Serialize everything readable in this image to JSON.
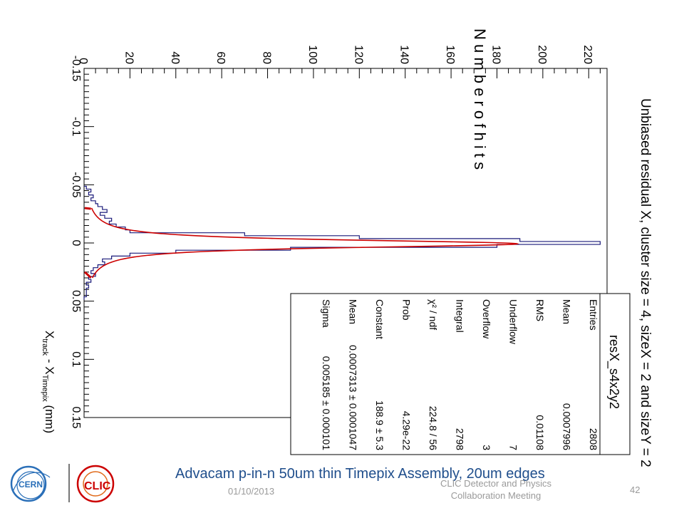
{
  "chart_data": {
    "type": "histogram",
    "orientation": "rotated-90",
    "title": "Unbiased residual X, cluster size = 4, sizeX = 2 and sizeY = 2",
    "xlabel": "X_track - X_Timepix (mm)",
    "xlabel_main": "X",
    "xlabel_sub1": "track",
    "xlabel_mid": " - X",
    "xlabel_sub2": "Timepix",
    "xlabel_unit": " (mm)",
    "ylabel": "N u m b e r  o f  h i t s",
    "xlim": [
      -0.15,
      0.15
    ],
    "ylim": [
      0,
      228
    ],
    "x_ticks": [
      "-0.15",
      "-0.1",
      "-0.05",
      "0",
      "0.05",
      "0.1",
      "0.15"
    ],
    "x_tick_values": [
      -0.15,
      -0.1,
      -0.05,
      0,
      0.05,
      0.1,
      0.15
    ],
    "y_ticks": [
      "0",
      "20",
      "40",
      "60",
      "80",
      "100",
      "120",
      "140",
      "160",
      "180",
      "200",
      "220"
    ],
    "y_tick_values": [
      0,
      20,
      40,
      60,
      80,
      100,
      120,
      140,
      160,
      180,
      200,
      220
    ],
    "histogram": {
      "name": "resX_s4x2y2",
      "bin_width": 0.0025,
      "x": [
        -0.0475,
        -0.045,
        -0.0425,
        -0.04,
        -0.0375,
        -0.035,
        -0.0325,
        -0.03,
        -0.0275,
        -0.025,
        -0.0225,
        -0.02,
        -0.0175,
        -0.015,
        -0.0125,
        -0.01,
        -0.0075,
        -0.005,
        -0.0025,
        0,
        0.0025,
        0.005,
        0.0075,
        0.01,
        0.0125,
        0.015,
        0.0175,
        0.02,
        0.0225,
        0.025,
        0.0275,
        0.03,
        0.0325,
        0.035,
        0.0375,
        0.04,
        0.0425,
        0.045,
        0.0475
      ],
      "values": [
        1,
        3,
        2,
        4,
        3,
        5,
        6,
        8,
        10,
        7,
        9,
        12,
        11,
        14,
        18,
        20,
        70,
        120,
        190,
        225,
        180,
        90,
        40,
        20,
        12,
        8,
        9,
        6,
        4,
        3,
        5,
        2,
        3,
        1,
        2,
        1,
        1,
        1,
        0
      ],
      "color": "#1a1a7a"
    },
    "fit": {
      "type": "gaussian-like",
      "peak": 188.9,
      "mean": 0.0007313,
      "sigma": 0.005185,
      "color": "#cc0000"
    },
    "stats_box": {
      "title": "resX_s4x2y2",
      "rows": [
        {
          "label": "Entries",
          "value": "2808"
        },
        {
          "label": "Mean",
          "value": "0.0007996"
        },
        {
          "label": "RMS",
          "value": "0.01108"
        },
        {
          "label": "Underflow",
          "value": "7"
        },
        {
          "label": "Overflow",
          "value": "3"
        },
        {
          "label": "Integral",
          "value": "2798"
        },
        {
          "label": "χ² / ndf",
          "value": "224.8 / 56"
        },
        {
          "label": "Prob",
          "value": "4.29e-22"
        },
        {
          "label": "Constant",
          "value": "188.9 ± 5.3"
        },
        {
          "label": "Mean",
          "value": "0.0007313 ± 0.0001047"
        },
        {
          "label": "Sigma",
          "value": "0.005185 ± 0.000101"
        }
      ]
    }
  },
  "subtitle": "Advacam  p-in-n 50um thin Timepix Assembly, 20um edges",
  "footer": {
    "date": "01/10/2013",
    "conference_line1": "CLIC Detector and Physics",
    "conference_line2": "Collaboration Meeting",
    "page": "42"
  },
  "logos": {
    "cern": "CERN",
    "clic": "CLIC",
    "cern_color": "#2a6fb8",
    "clic_color": "#cc0000"
  }
}
